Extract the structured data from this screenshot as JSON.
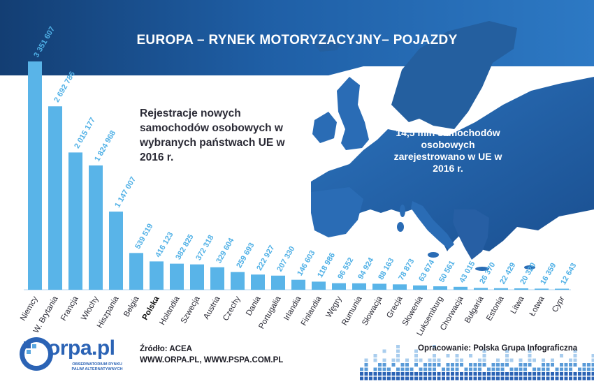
{
  "page": {
    "title": "EUROPA – RYNEK MOTORYZACYJNY– POJAZDY",
    "subtitle": "Rejestracje nowych samochodów osobowych w wybranych państwach UE w 2016 r.",
    "map_note": "14,5 mln samochodów osobowych zarejestrowano w UE w 2016 r.",
    "source_line1": "Źródło: ACEA",
    "source_line2": "WWW.ORPA.PL, WWW.PSPA.COM.PL",
    "credit": "Opracowanie: Polska Grupa Infograficzna",
    "logo_text": "orpa.pl",
    "logo_sub1": "OBSERWATORIUM RYNKU",
    "logo_sub2": "PALIW ALTERNATYWNYCH"
  },
  "colors": {
    "header_dark": "#16457e",
    "header_light": "#2e78c2",
    "bar": "#59b4e8",
    "value_label": "#4fb0e6",
    "map_land": "#1e5a9e",
    "map_land_light": "#3f86cc",
    "highlight_text": "#111111"
  },
  "chart_data": {
    "type": "bar",
    "title": "",
    "xlabel": "",
    "ylabel": "",
    "ylim": [
      0,
      3351607
    ],
    "grid": false,
    "highlight": "Polska",
    "categories": [
      "Niemcy",
      "W. Brytania",
      "Francja",
      "Włochy",
      "Hiszpania",
      "Belgia",
      "Polska",
      "Holandia",
      "Szwecja",
      "Austria",
      "Czechy",
      "Dania",
      "Portugalia",
      "Irlandia",
      "Finlandia",
      "Węgry",
      "Rumunia",
      "Słowacja",
      "Grecja",
      "Słowenia",
      "Luksemburg",
      "Chorwacja",
      "Bułgaria",
      "Estonia",
      "Litwa",
      "Łotwa",
      "Cypr"
    ],
    "values": [
      3351607,
      2692786,
      2015177,
      1824968,
      1147007,
      539519,
      416123,
      382825,
      372318,
      329604,
      259693,
      222927,
      207330,
      146603,
      118986,
      96552,
      94924,
      88163,
      78873,
      63674,
      50561,
      43015,
      26370,
      22429,
      20320,
      16359,
      12643
    ],
    "value_labels": [
      "3 351 607",
      "2 692 786",
      "2 015 177",
      "1 824 968",
      "1 147 007",
      "539 519",
      "416 123",
      "382 825",
      "372 318",
      "329 604",
      "259 693",
      "222 927",
      "207 330",
      "146 603",
      "118 986",
      "96 552",
      "94 924",
      "88 163",
      "78 873",
      "63 674",
      "50 561",
      "43 015",
      "26 370",
      "22 429",
      "20 320",
      "16 359",
      "12 643"
    ]
  }
}
